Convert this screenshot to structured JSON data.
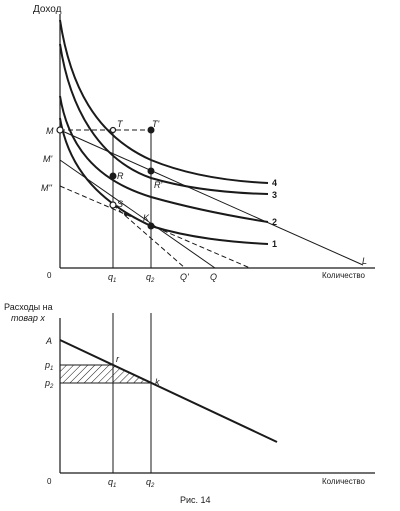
{
  "top": {
    "y_axis_label": "Доход",
    "x_axis_label": "Количество",
    "origin": "0",
    "points": {
      "M": "M",
      "M1": "M'",
      "M2": "M''",
      "T": "T",
      "T1": "T'",
      "R": "R",
      "R1": "R'",
      "S": "S",
      "K": "K",
      "Q1": "Q'",
      "Q": "Q",
      "L": "L"
    },
    "x_ticks": {
      "q1": "q",
      "q1_sub": "1",
      "q2": "q",
      "q2_sub": "2"
    },
    "curve_labels": [
      "1",
      "2",
      "3",
      "4"
    ]
  },
  "bottom": {
    "y_axis_label_line1": "Расходы на",
    "y_axis_label_line2": "товар x",
    "x_axis_label": "Количество",
    "origin": "0",
    "points": {
      "A": "A",
      "r": "r",
      "k": "k"
    },
    "y_ticks": {
      "p1": "p",
      "p1_sub": "1",
      "p2": "p",
      "p2_sub": "2"
    },
    "x_ticks": {
      "q1": "q",
      "q1_sub": "1",
      "q2": "q",
      "q2_sub": "2"
    }
  },
  "caption": "Рис. 14"
}
